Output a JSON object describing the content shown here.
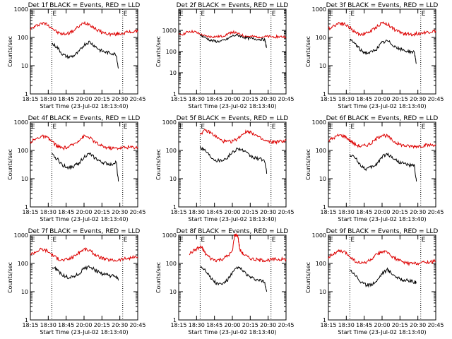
{
  "chart_data": [
    {
      "type": "line",
      "title": "Det 1f BLACK = Events, RED = LLD",
      "ylabel": "Counts/sec",
      "xlabel": "Start Time (23-Jul-02 18:13:40)",
      "x_ticks": [
        "18:15",
        "18:30",
        "18:45",
        "20:00",
        "20:15",
        "20:30",
        "20:45"
      ],
      "y_ticks": [
        "1",
        "10",
        "100",
        "1000"
      ],
      "y_scale": "log",
      "ylim": [
        1,
        1000
      ],
      "markers": [
        "E",
        "E"
      ],
      "series": [
        {
          "color": "#dd0000",
          "x": [
            0,
            0.05,
            0.1,
            0.15,
            0.2,
            0.25,
            0.3,
            0.35,
            0.4,
            0.45,
            0.5,
            0.55,
            0.6,
            0.65,
            0.7,
            0.75,
            0.8,
            0.85,
            0.9,
            0.95,
            1
          ],
          "y": [
            200,
            250,
            320,
            300,
            220,
            150,
            130,
            140,
            170,
            240,
            330,
            300,
            210,
            160,
            140,
            130,
            130,
            140,
            150,
            160,
            160
          ]
        },
        {
          "color": "#000000",
          "x": [
            0.2,
            0.25,
            0.3,
            0.35,
            0.4,
            0.45,
            0.5,
            0.55,
            0.6,
            0.65,
            0.7,
            0.75,
            0.8,
            0.82
          ],
          "y": [
            60,
            45,
            25,
            20,
            22,
            30,
            55,
            70,
            50,
            35,
            30,
            28,
            25,
            8
          ]
        }
      ]
    },
    {
      "type": "line",
      "title": "Det 2f BLACK = Events, RED = LLD",
      "ylabel": "Counts/sec",
      "xlabel": "Start Time (23-Jul-02 18:13:40)",
      "x_ticks": [
        "18:15",
        "18:30",
        "18:45",
        "20:00",
        "20:15",
        "20:30",
        "20:45"
      ],
      "y_ticks": [
        "1",
        "10",
        "100",
        "1000"
      ],
      "y_scale": "log",
      "ylim": [
        1,
        10000
      ],
      "markers": [
        "E",
        "E"
      ],
      "series": [
        {
          "color": "#dd0000",
          "x": [
            0,
            0.05,
            0.1,
            0.15,
            0.2,
            0.25,
            0.3,
            0.35,
            0.4,
            0.45,
            0.5,
            0.55,
            0.6,
            0.65,
            0.7,
            0.75,
            0.8,
            0.85,
            0.9,
            0.95,
            1
          ],
          "y": [
            600,
            700,
            900,
            850,
            650,
            520,
            500,
            500,
            520,
            650,
            850,
            700,
            560,
            520,
            500,
            500,
            500,
            500,
            500,
            500,
            500
          ]
        },
        {
          "color": "#000000",
          "x": [
            0.2,
            0.25,
            0.3,
            0.35,
            0.4,
            0.45,
            0.5,
            0.55,
            0.6,
            0.65,
            0.7,
            0.75,
            0.8,
            0.82
          ],
          "y": [
            600,
            450,
            330,
            300,
            310,
            380,
            550,
            600,
            480,
            420,
            400,
            380,
            370,
            150
          ]
        }
      ]
    },
    {
      "type": "line",
      "title": "Det 3f BLACK = Events, RED = LLD",
      "ylabel": "Counts/sec",
      "xlabel": "Start Time (23-Jul-02 18:13:40)",
      "x_ticks": [
        "18:15",
        "18:30",
        "18:45",
        "20:00",
        "20:15",
        "20:30",
        "20:45"
      ],
      "y_ticks": [
        "1",
        "10",
        "100",
        "1000"
      ],
      "y_scale": "log",
      "ylim": [
        1,
        1000
      ],
      "markers": [
        "E",
        "E"
      ],
      "series": [
        {
          "color": "#dd0000",
          "x": [
            0,
            0.05,
            0.1,
            0.15,
            0.2,
            0.25,
            0.3,
            0.35,
            0.4,
            0.45,
            0.5,
            0.55,
            0.6,
            0.65,
            0.7,
            0.75,
            0.8,
            0.85,
            0.9,
            0.95,
            1
          ],
          "y": [
            200,
            260,
            330,
            300,
            220,
            150,
            130,
            140,
            170,
            240,
            330,
            300,
            210,
            160,
            140,
            130,
            130,
            140,
            150,
            160,
            170
          ]
        },
        {
          "color": "#000000",
          "x": [
            0.2,
            0.25,
            0.3,
            0.35,
            0.4,
            0.45,
            0.5,
            0.55,
            0.6,
            0.65,
            0.7,
            0.75,
            0.8,
            0.82
          ],
          "y": [
            80,
            60,
            35,
            28,
            30,
            40,
            65,
            75,
            55,
            40,
            35,
            32,
            30,
            12
          ]
        }
      ]
    },
    {
      "type": "line",
      "title": "Det 4f BLACK = Events, RED = LLD",
      "ylabel": "Counts/sec",
      "xlabel": "Start Time (23-Jul-02 18:13:40)",
      "x_ticks": [
        "18:15",
        "18:30",
        "18:45",
        "20:00",
        "20:15",
        "20:30",
        "20:45"
      ],
      "y_ticks": [
        "1",
        "10",
        "100",
        "1000"
      ],
      "y_scale": "log",
      "ylim": [
        1,
        1000
      ],
      "markers": [
        "E",
        "E"
      ],
      "series": [
        {
          "color": "#dd0000",
          "x": [
            0,
            0.05,
            0.1,
            0.15,
            0.2,
            0.25,
            0.3,
            0.35,
            0.4,
            0.45,
            0.5,
            0.55,
            0.6,
            0.65,
            0.7,
            0.75,
            0.8,
            0.85,
            0.9,
            0.95,
            1
          ],
          "y": [
            200,
            250,
            320,
            290,
            210,
            140,
            120,
            130,
            160,
            230,
            320,
            290,
            200,
            150,
            130,
            120,
            120,
            125,
            130,
            130,
            130
          ]
        },
        {
          "color": "#000000",
          "x": [
            0.2,
            0.25,
            0.3,
            0.35,
            0.4,
            0.45,
            0.5,
            0.55,
            0.6,
            0.65,
            0.7,
            0.75,
            0.8,
            0.82
          ],
          "y": [
            70,
            50,
            30,
            25,
            27,
            35,
            60,
            75,
            55,
            40,
            35,
            32,
            40,
            8
          ]
        }
      ]
    },
    {
      "type": "line",
      "title": "Det 5f BLACK = Events, RED = LLD",
      "ylabel": "Counts/sec",
      "xlabel": "Start Time (23-Jul-02 18:13:40)",
      "x_ticks": [
        "18:15",
        "18:30",
        "18:45",
        "20:00",
        "20:15",
        "20:30",
        "20:45"
      ],
      "y_ticks": [
        "1",
        "10",
        "100",
        "1000"
      ],
      "y_scale": "log",
      "ylim": [
        1,
        1000
      ],
      "markers": [
        "E",
        "E"
      ],
      "series": [
        {
          "color": "#dd0000",
          "x": [
            0.2,
            0.25,
            0.3,
            0.35,
            0.4,
            0.45,
            0.5,
            0.55,
            0.6,
            0.65,
            0.7,
            0.75,
            0.8,
            0.85,
            0.9,
            0.95,
            1
          ],
          "y": [
            400,
            500,
            420,
            300,
            220,
            200,
            210,
            260,
            400,
            480,
            400,
            280,
            220,
            200,
            200,
            210,
            220
          ]
        },
        {
          "color": "#000000",
          "x": [
            0.2,
            0.25,
            0.3,
            0.35,
            0.4,
            0.45,
            0.5,
            0.55,
            0.6,
            0.65,
            0.7,
            0.75,
            0.8,
            0.82
          ],
          "y": [
            130,
            100,
            60,
            45,
            45,
            55,
            85,
            120,
            100,
            70,
            55,
            50,
            45,
            15
          ]
        }
      ]
    },
    {
      "type": "line",
      "title": "Det 6f BLACK = Events, RED = LLD",
      "ylabel": "Counts/sec",
      "xlabel": "Start Time (23-Jul-02 18:13:40)",
      "x_ticks": [
        "18:15",
        "18:30",
        "18:45",
        "20:00",
        "20:15",
        "20:30",
        "20:45"
      ],
      "y_ticks": [
        "1",
        "10",
        "100",
        "1000"
      ],
      "y_scale": "log",
      "ylim": [
        1,
        1000
      ],
      "markers": [
        "E",
        "E"
      ],
      "series": [
        {
          "color": "#dd0000",
          "x": [
            0,
            0.05,
            0.1,
            0.15,
            0.2,
            0.25,
            0.3,
            0.35,
            0.4,
            0.45,
            0.5,
            0.55,
            0.6,
            0.65,
            0.7,
            0.75,
            0.8,
            0.85,
            0.9,
            0.95,
            1
          ],
          "y": [
            220,
            280,
            350,
            320,
            230,
            160,
            140,
            150,
            180,
            260,
            360,
            320,
            220,
            170,
            150,
            140,
            140,
            145,
            150,
            155,
            160
          ]
        },
        {
          "color": "#000000",
          "x": [
            0.2,
            0.25,
            0.3,
            0.35,
            0.4,
            0.45,
            0.5,
            0.55,
            0.6,
            0.65,
            0.7,
            0.75,
            0.8,
            0.82
          ],
          "y": [
            70,
            55,
            30,
            22,
            25,
            33,
            60,
            75,
            55,
            40,
            35,
            30,
            28,
            8
          ]
        }
      ]
    },
    {
      "type": "line",
      "title": "Det 7f BLACK = Events, RED = LLD",
      "ylabel": "Counts/sec",
      "xlabel": "Start Time (23-Jul-02 18:13:40)",
      "x_ticks": [
        "18:15",
        "18:30",
        "18:45",
        "20:00",
        "20:15",
        "20:30",
        "20:45"
      ],
      "y_ticks": [
        "1",
        "10",
        "100",
        "1000"
      ],
      "y_scale": "log",
      "ylim": [
        1,
        1000
      ],
      "markers": [
        "E",
        "E"
      ],
      "series": [
        {
          "color": "#dd0000",
          "x": [
            0,
            0.05,
            0.1,
            0.15,
            0.2,
            0.25,
            0.3,
            0.35,
            0.4,
            0.45,
            0.5,
            0.55,
            0.6,
            0.65,
            0.7,
            0.75,
            0.8,
            0.85,
            0.9,
            0.95,
            1
          ],
          "y": [
            210,
            260,
            320,
            290,
            210,
            150,
            130,
            140,
            170,
            240,
            320,
            290,
            210,
            160,
            140,
            130,
            130,
            140,
            150,
            160,
            170
          ]
        },
        {
          "color": "#000000",
          "x": [
            0.2,
            0.25,
            0.3,
            0.35,
            0.4,
            0.45,
            0.5,
            0.55,
            0.6,
            0.65,
            0.7,
            0.75,
            0.8,
            0.82
          ],
          "y": [
            75,
            60,
            38,
            32,
            34,
            42,
            65,
            80,
            60,
            45,
            40,
            36,
            34,
            25
          ]
        }
      ]
    },
    {
      "type": "line",
      "title": "Det 8f BLACK = Events, RED = LLD",
      "ylabel": "Counts/sec",
      "xlabel": "Start Time (23-Jul-02 18:13:40)",
      "x_ticks": [
        "18:15",
        "18:30",
        "18:45",
        "20:00",
        "20:15",
        "20:30",
        "20:45"
      ],
      "y_ticks": [
        "1",
        "10",
        "100",
        "1000"
      ],
      "y_scale": "log",
      "ylim": [
        1,
        1000
      ],
      "markers": [
        "E",
        "E"
      ],
      "series": [
        {
          "color": "#dd0000",
          "x": [
            0.1,
            0.15,
            0.2,
            0.22,
            0.25,
            0.3,
            0.35,
            0.4,
            0.45,
            0.5,
            0.52,
            0.55,
            0.57,
            0.6,
            0.65,
            0.7,
            0.75,
            0.8,
            0.85,
            0.9,
            0.95,
            1
          ],
          "y": [
            220,
            300,
            380,
            350,
            220,
            150,
            130,
            140,
            180,
            260,
            1000,
            1000,
            300,
            220,
            160,
            140,
            130,
            130,
            135,
            140,
            140,
            140
          ]
        },
        {
          "color": "#000000",
          "x": [
            0.2,
            0.25,
            0.3,
            0.35,
            0.4,
            0.45,
            0.5,
            0.55,
            0.6,
            0.65,
            0.7,
            0.75,
            0.8,
            0.82
          ],
          "y": [
            80,
            60,
            30,
            20,
            18,
            25,
            45,
            75,
            55,
            35,
            28,
            25,
            22,
            10
          ]
        }
      ]
    },
    {
      "type": "line",
      "title": "Det 9f BLACK = Events, RED = LLD",
      "ylabel": "Counts/sec",
      "xlabel": "Start Time (23-Jul-02 18:13:40)",
      "x_ticks": [
        "18:15",
        "18:30",
        "18:45",
        "20:00",
        "20:15",
        "20:30",
        "20:45"
      ],
      "y_ticks": [
        "1",
        "10",
        "100",
        "1000"
      ],
      "y_scale": "log",
      "ylim": [
        1,
        1000
      ],
      "markers": [
        "E",
        "E"
      ],
      "series": [
        {
          "color": "#dd0000",
          "x": [
            0,
            0.05,
            0.1,
            0.15,
            0.2,
            0.25,
            0.3,
            0.35,
            0.4,
            0.45,
            0.5,
            0.55,
            0.6,
            0.65,
            0.7,
            0.75,
            0.8,
            0.85,
            0.9,
            0.95,
            1
          ],
          "y": [
            170,
            220,
            270,
            250,
            180,
            120,
            100,
            110,
            140,
            200,
            270,
            240,
            170,
            130,
            110,
            100,
            100,
            105,
            110,
            115,
            120
          ]
        },
        {
          "color": "#000000",
          "x": [
            0.2,
            0.25,
            0.3,
            0.35,
            0.4,
            0.45,
            0.5,
            0.55,
            0.6,
            0.65,
            0.7,
            0.75,
            0.8,
            0.82
          ],
          "y": [
            60,
            40,
            22,
            17,
            18,
            24,
            45,
            60,
            42,
            30,
            26,
            24,
            22,
            20
          ]
        }
      ]
    }
  ]
}
